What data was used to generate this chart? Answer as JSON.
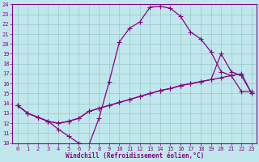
{
  "xlabel": "Windchill (Refroidissement éolien,°C)",
  "xlim_min": -0.5,
  "xlim_max": 23.5,
  "ylim_min": 10,
  "ylim_max": 24,
  "xticks": [
    0,
    1,
    2,
    3,
    4,
    5,
    6,
    7,
    8,
    9,
    10,
    11,
    12,
    13,
    14,
    15,
    16,
    17,
    18,
    19,
    20,
    21,
    22,
    23
  ],
  "yticks": [
    10,
    11,
    12,
    13,
    14,
    15,
    16,
    17,
    18,
    19,
    20,
    21,
    22,
    23,
    24
  ],
  "background_color": "#c0e8ec",
  "grid_color": "#a0ccd0",
  "line_color": "#880088",
  "line1_x": [
    0,
    1,
    2,
    3,
    4,
    5,
    6,
    7,
    8,
    9,
    10,
    11,
    12,
    13,
    14,
    15,
    16,
    17,
    18,
    19,
    20,
    21,
    22,
    23
  ],
  "line1_y": [
    13.8,
    13.0,
    12.6,
    12.2,
    11.4,
    10.7,
    10.0,
    9.8,
    12.5,
    16.2,
    20.2,
    21.6,
    22.2,
    23.7,
    23.8,
    23.6,
    22.8,
    21.2,
    20.5,
    19.2,
    17.2,
    16.8,
    15.2,
    15.2
  ],
  "line2_x": [
    0,
    1,
    2,
    3,
    4,
    5,
    6,
    7,
    8,
    9,
    10,
    11,
    12,
    13,
    14,
    15,
    16,
    17,
    18,
    19,
    20,
    21,
    22,
    23
  ],
  "line2_y": [
    13.8,
    13.0,
    12.6,
    12.2,
    12.0,
    12.2,
    12.5,
    13.2,
    13.5,
    13.8,
    14.1,
    14.4,
    14.7,
    15.0,
    15.3,
    15.5,
    15.8,
    16.0,
    16.2,
    16.4,
    16.6,
    16.8,
    17.0,
    15.0
  ],
  "line3_x": [
    0,
    1,
    2,
    3,
    4,
    5,
    6,
    7,
    8,
    9,
    10,
    11,
    12,
    13,
    14,
    15,
    16,
    17,
    18,
    19,
    20,
    21,
    22,
    23
  ],
  "line3_y": [
    13.8,
    13.0,
    12.6,
    12.2,
    12.0,
    12.2,
    12.5,
    13.2,
    13.5,
    13.8,
    14.1,
    14.4,
    14.7,
    15.0,
    15.3,
    15.5,
    15.8,
    16.0,
    16.2,
    16.4,
    19.0,
    17.2,
    16.8,
    15.0
  ]
}
